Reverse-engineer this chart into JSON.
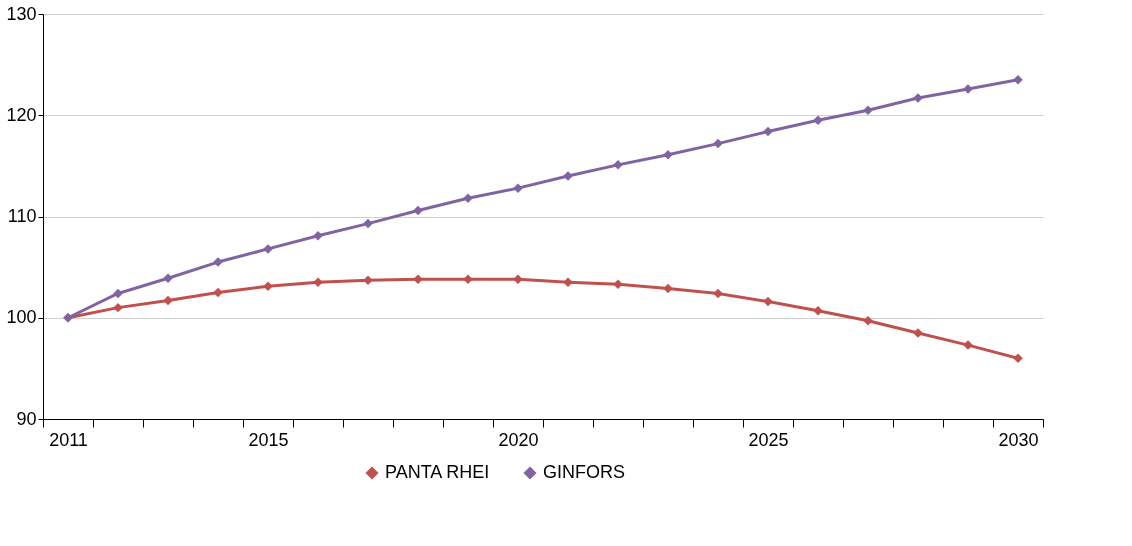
{
  "chart_data": {
    "type": "line",
    "categories": [
      "2011",
      null,
      null,
      null,
      "2015",
      null,
      null,
      null,
      null,
      "2020",
      null,
      null,
      null,
      null,
      "2025",
      null,
      null,
      null,
      null,
      "2030"
    ],
    "series": [
      {
        "name": "PANTA RHEI",
        "color": "#c0504d",
        "values": [
          100,
          101.0,
          101.7,
          102.5,
          103.1,
          103.5,
          103.7,
          103.8,
          103.8,
          103.8,
          103.5,
          103.3,
          102.9,
          102.4,
          101.6,
          100.7,
          99.7,
          98.5,
          97.3,
          96.0
        ]
      },
      {
        "name": "GINFORS",
        "color": "#8064a2",
        "values": [
          100,
          102.4,
          103.9,
          105.5,
          106.8,
          108.1,
          109.3,
          110.6,
          111.8,
          112.8,
          114.0,
          115.1,
          116.1,
          117.2,
          118.4,
          119.5,
          120.5,
          121.7,
          122.6,
          123.5
        ]
      }
    ],
    "ylim": [
      90,
      130
    ],
    "yticks": [
      90,
      100,
      110,
      120,
      130
    ],
    "grid": "y",
    "legend": "bottom",
    "marker": "diamond",
    "line_style": "solid"
  }
}
